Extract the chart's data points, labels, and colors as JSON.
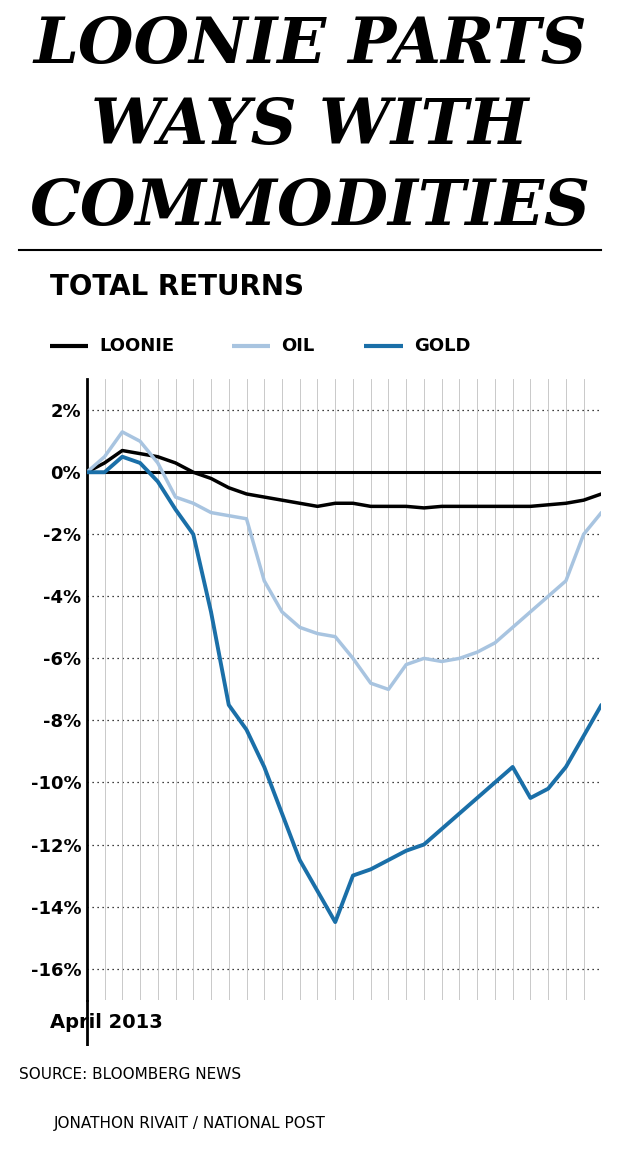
{
  "title_lines": [
    "LOONIE PARTS",
    "WAYS WITH",
    "COMMODITIES"
  ],
  "subtitle": "TOTAL RETURNS",
  "legend_items": [
    "LOONIE",
    "OIL",
    "GOLD"
  ],
  "loonie_color": "#000000",
  "oil_color": "#a8c4e0",
  "gold_color": "#1a6fa8",
  "xlabel": "April 2013",
  "source_line1": "SOURCE: BLOOMBERG NEWS",
  "source_line2": "JONATHON RIVAIT / NATIONAL POST",
  "ylim": [
    -17,
    3
  ],
  "yticks": [
    2,
    0,
    -2,
    -4,
    -6,
    -8,
    -10,
    -12,
    -14,
    -16
  ],
  "n_points": 30,
  "loonie": [
    0.0,
    0.3,
    0.7,
    0.6,
    0.5,
    0.3,
    0.0,
    -0.2,
    -0.5,
    -0.7,
    -0.8,
    -0.9,
    -1.0,
    -1.1,
    -1.0,
    -1.0,
    -1.1,
    -1.1,
    -1.1,
    -1.15,
    -1.1,
    -1.1,
    -1.1,
    -1.1,
    -1.1,
    -1.1,
    -1.05,
    -1.0,
    -0.9,
    -0.7
  ],
  "oil": [
    0.0,
    0.5,
    1.3,
    1.0,
    0.3,
    -0.8,
    -1.0,
    -1.3,
    -1.4,
    -1.5,
    -3.5,
    -4.5,
    -5.0,
    -5.2,
    -5.3,
    -6.0,
    -6.8,
    -7.0,
    -6.2,
    -6.0,
    -6.1,
    -6.0,
    -5.8,
    -5.5,
    -5.0,
    -4.5,
    -4.0,
    -3.5,
    -2.0,
    -1.3
  ],
  "gold": [
    0.0,
    0.0,
    0.5,
    0.3,
    -0.3,
    -1.2,
    -2.0,
    -4.5,
    -7.5,
    -8.3,
    -9.5,
    -11.0,
    -12.5,
    -13.5,
    -14.5,
    -13.0,
    -12.8,
    -12.5,
    -12.2,
    -12.0,
    -11.5,
    -11.0,
    -10.5,
    -10.0,
    -9.5,
    -10.5,
    -10.2,
    -9.5,
    -8.5,
    -7.5
  ]
}
